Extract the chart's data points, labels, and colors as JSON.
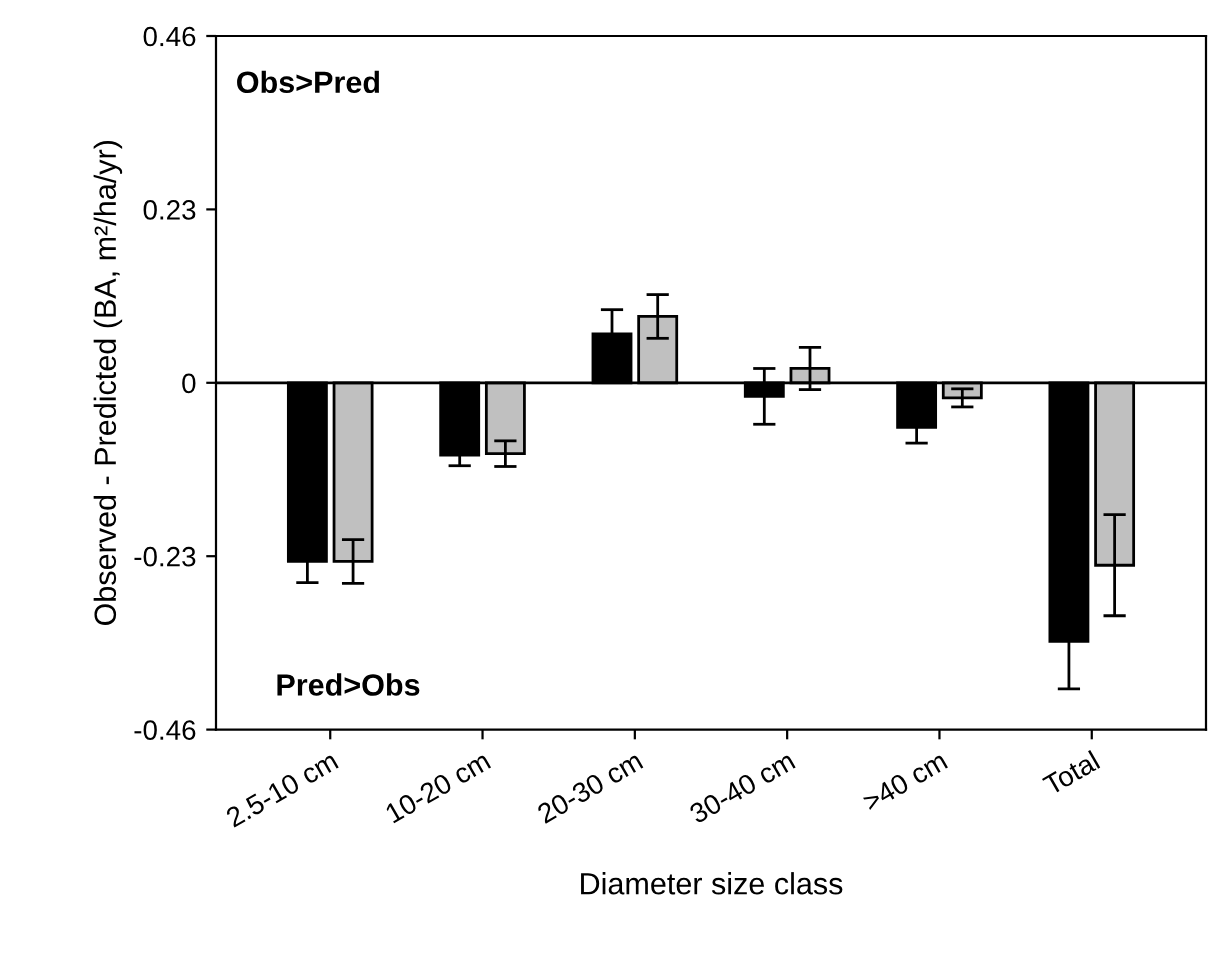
{
  "chart_data": {
    "type": "bar",
    "xlabel": "Diameter size class",
    "ylabel": "Observed - Predicted (BA, m²/ha/yr)",
    "categories": [
      "2.5-10 cm",
      "10-20 cm",
      "20-30 cm",
      "30-40 cm",
      ">40 cm",
      "Total"
    ],
    "series": [
      {
        "color": "#000000",
        "values": [
          -0.237,
          -0.096,
          0.065,
          -0.018,
          -0.059,
          -0.343
        ],
        "errors": [
          0.028,
          0.014,
          0.032,
          0.037,
          0.021,
          0.063
        ]
      },
      {
        "color": "#c0c0c0",
        "values": [
          -0.237,
          -0.094,
          0.088,
          0.019,
          -0.02,
          -0.242
        ],
        "errors": [
          0.029,
          0.017,
          0.029,
          0.028,
          0.012,
          0.067
        ]
      }
    ],
    "ylim": [
      -0.46,
      0.46
    ],
    "yticks": [
      -0.46,
      -0.23,
      0,
      0.23,
      0.46
    ],
    "ref_lines": [
      {
        "axis": "y",
        "value": 0,
        "color": "#000000"
      }
    ],
    "annotations": [
      "Obs>Pred",
      "Pred>Obs"
    ],
    "grid": false,
    "legend": false
  }
}
